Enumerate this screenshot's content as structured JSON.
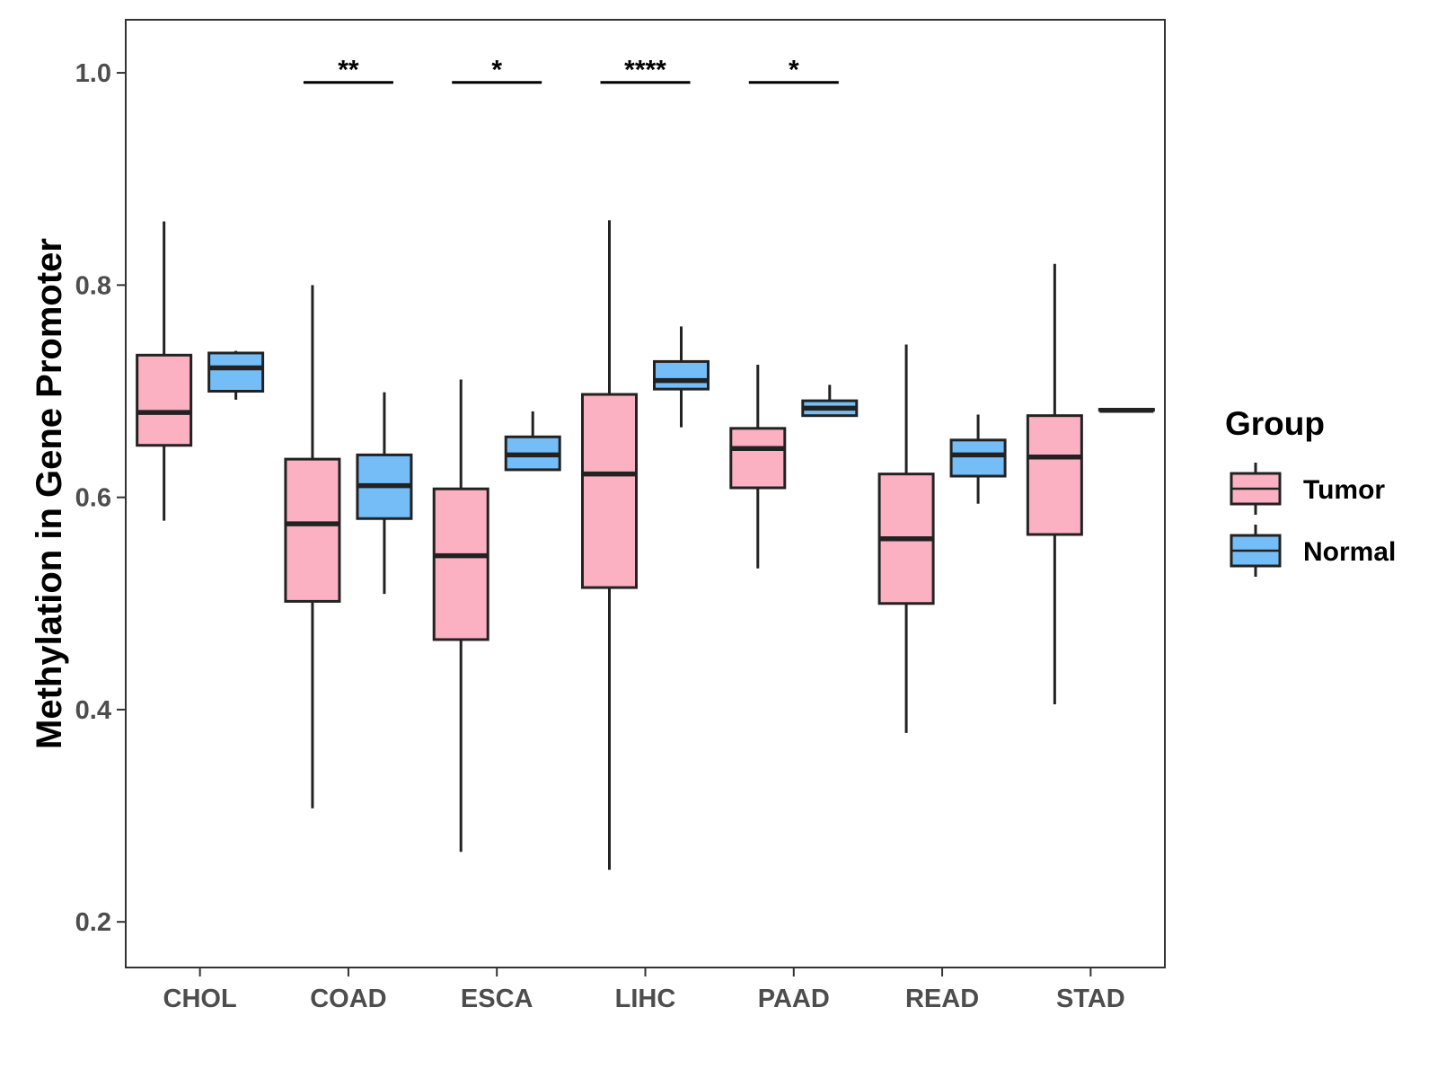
{
  "chart_data": {
    "type": "boxplot",
    "title": "",
    "xlabel": "",
    "ylabel": "Methylation in Gene Promoter",
    "ylim": [
      0.157,
      1.05
    ],
    "yticks": [
      0.2,
      0.4,
      0.6,
      0.8,
      1.0
    ],
    "ytick_labels": [
      "0.2",
      "0.4",
      "0.6",
      "0.8",
      "1.0"
    ],
    "categories": [
      "CHOL",
      "COAD",
      "ESCA",
      "LIHC",
      "PAAD",
      "READ",
      "STAD"
    ],
    "legend": {
      "title": "Group",
      "position": "right",
      "entries": [
        {
          "name": "Tumor",
          "color": "#fbb1c1"
        },
        {
          "name": "Normal",
          "color": "#74bdf7"
        }
      ]
    },
    "series": [
      {
        "name": "Tumor",
        "color": "#fbb1c1",
        "boxes": [
          {
            "category": "CHOL",
            "min": 0.578,
            "q1": 0.649,
            "median": 0.68,
            "q3": 0.734,
            "max": 0.86
          },
          {
            "category": "COAD",
            "min": 0.307,
            "q1": 0.502,
            "median": 0.575,
            "q3": 0.636,
            "max": 0.8
          },
          {
            "category": "ESCA",
            "min": 0.266,
            "q1": 0.466,
            "median": 0.545,
            "q3": 0.608,
            "max": 0.711
          },
          {
            "category": "LIHC",
            "min": 0.249,
            "q1": 0.515,
            "median": 0.622,
            "q3": 0.697,
            "max": 0.861
          },
          {
            "category": "PAAD",
            "min": 0.533,
            "q1": 0.609,
            "median": 0.646,
            "q3": 0.665,
            "max": 0.725
          },
          {
            "category": "READ",
            "min": 0.378,
            "q1": 0.5,
            "median": 0.561,
            "q3": 0.622,
            "max": 0.744
          },
          {
            "category": "STAD",
            "min": 0.405,
            "q1": 0.565,
            "median": 0.638,
            "q3": 0.677,
            "max": 0.82
          }
        ]
      },
      {
        "name": "Normal",
        "color": "#74bdf7",
        "boxes": [
          {
            "category": "CHOL",
            "min": 0.692,
            "q1": 0.7,
            "median": 0.722,
            "q3": 0.736,
            "max": 0.738
          },
          {
            "category": "COAD",
            "min": 0.509,
            "q1": 0.58,
            "median": 0.611,
            "q3": 0.64,
            "max": 0.699
          },
          {
            "category": "ESCA",
            "min": 0.626,
            "q1": 0.626,
            "median": 0.64,
            "q3": 0.657,
            "max": 0.681
          },
          {
            "category": "LIHC",
            "min": 0.666,
            "q1": 0.702,
            "median": 0.71,
            "q3": 0.728,
            "max": 0.761
          },
          {
            "category": "PAAD",
            "min": 0.677,
            "q1": 0.677,
            "median": 0.684,
            "q3": 0.691,
            "max": 0.706
          },
          {
            "category": "READ",
            "min": 0.594,
            "q1": 0.62,
            "median": 0.64,
            "q3": 0.654,
            "max": 0.678
          },
          {
            "category": "STAD",
            "min": 0.682,
            "q1": 0.682,
            "median": 0.682,
            "q3": 0.683,
            "max": 0.683
          }
        ]
      }
    ],
    "significance": [
      {
        "category": "COAD",
        "label": "**",
        "y": 0.991
      },
      {
        "category": "ESCA",
        "label": "*",
        "y": 0.991
      },
      {
        "category": "LIHC",
        "label": "****",
        "y": 0.991
      },
      {
        "category": "PAAD",
        "label": "*",
        "y": 0.991
      }
    ]
  }
}
